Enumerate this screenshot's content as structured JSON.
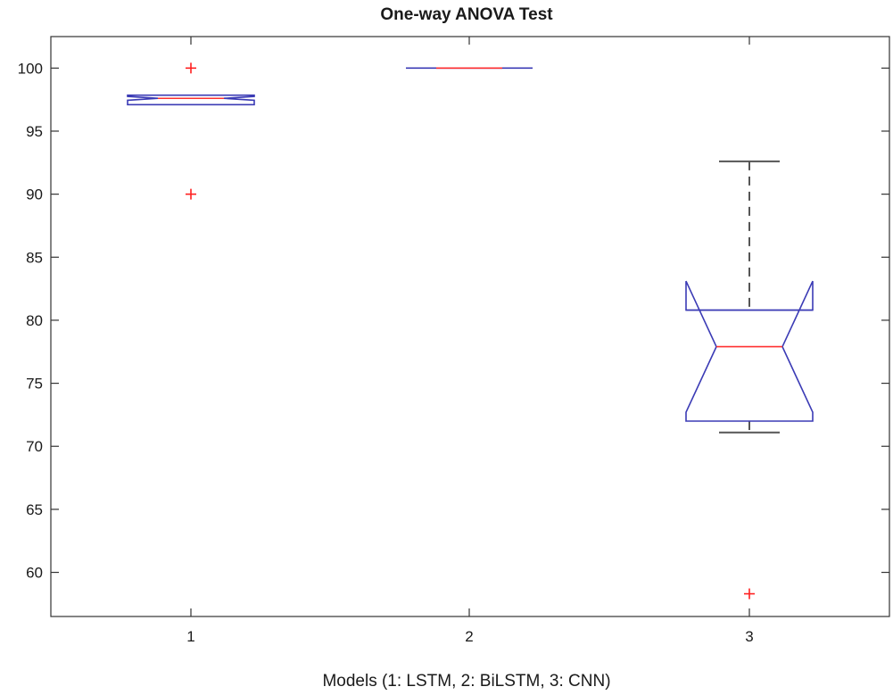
{
  "chart_data": {
    "type": "box",
    "title": "One-way ANOVA Test",
    "xlabel": "Models (1: LSTM, 2: BiLSTM, 3: CNN)",
    "ylabel": "",
    "ylim": [
      56.5,
      102.5
    ],
    "yticks": [
      60,
      65,
      70,
      75,
      80,
      85,
      90,
      95,
      100
    ],
    "categories": [
      "1",
      "2",
      "3"
    ],
    "notched": true,
    "grid": false,
    "legend": "none",
    "colors": {
      "box": "#3b3bb5",
      "median": "#ff3030",
      "whisker": "#555555",
      "outlier": "#ff2020",
      "axis": "#333333"
    },
    "boxes": [
      {
        "category": "1",
        "q1": 97.1,
        "median": 97.6,
        "q3": 97.85,
        "whisker_low": 97.1,
        "whisker_high": 97.85,
        "notch_low": 97.45,
        "notch_high": 97.75,
        "outliers": [
          100,
          90
        ]
      },
      {
        "category": "2",
        "q1": 100,
        "median": 100,
        "q3": 100,
        "whisker_low": 100,
        "whisker_high": 100,
        "notch_low": 100,
        "notch_high": 100,
        "outliers": []
      },
      {
        "category": "3",
        "q1": 72.0,
        "median": 77.9,
        "q3": 80.8,
        "whisker_low": 71.1,
        "whisker_high": 92.6,
        "notch_low": 72.7,
        "notch_high": 83.1,
        "outliers": [
          58.3
        ]
      }
    ]
  }
}
